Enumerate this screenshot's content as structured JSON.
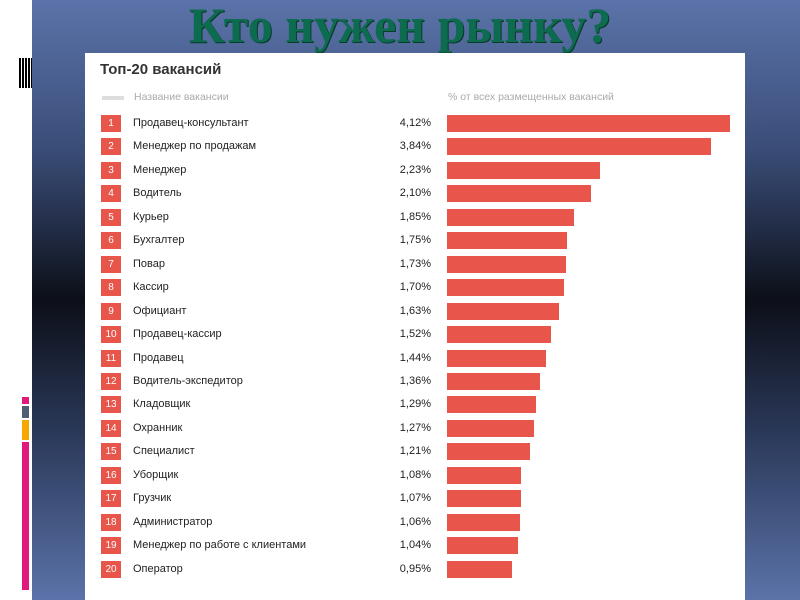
{
  "slide": {
    "title": "Кто нужен рынку?"
  },
  "colors": {
    "bar": "#e8554a",
    "title": "#0d6b4f"
  },
  "chart_data": {
    "type": "bar",
    "orientation": "horizontal",
    "title": "Топ-20 вакансий",
    "xlabel": "% от всех размещенных вакансий",
    "ylabel": "Название вакансии",
    "xlim": [
      0,
      4.12
    ],
    "grid": false,
    "categories": [
      "Продавец-консультант",
      "Менеджер по продажам",
      "Менеджер",
      "Водитель",
      "Курьер",
      "Бухгалтер",
      "Повар",
      "Кассир",
      "Официант",
      "Продавец-кассир",
      "Продавец",
      "Водитель-экспедитор",
      "Кладовщик",
      "Охранник",
      "Специалист",
      "Уборщик",
      "Грузчик",
      "Администратор",
      "Менеджер по работе с клиентами",
      "Оператор"
    ],
    "values": [
      4.12,
      3.84,
      2.23,
      2.1,
      1.85,
      1.75,
      1.73,
      1.7,
      1.63,
      1.52,
      1.44,
      1.36,
      1.29,
      1.27,
      1.21,
      1.08,
      1.07,
      1.06,
      1.04,
      0.95
    ],
    "labels": [
      "4,12%",
      "3,84%",
      "2,23%",
      "2,10%",
      "1,85%",
      "1,75%",
      "1,73%",
      "1,70%",
      "1,63%",
      "1,52%",
      "1,44%",
      "1,36%",
      "1,29%",
      "1,27%",
      "1,21%",
      "1,08%",
      "1,07%",
      "1,06%",
      "1,04%",
      "0,95%"
    ]
  }
}
